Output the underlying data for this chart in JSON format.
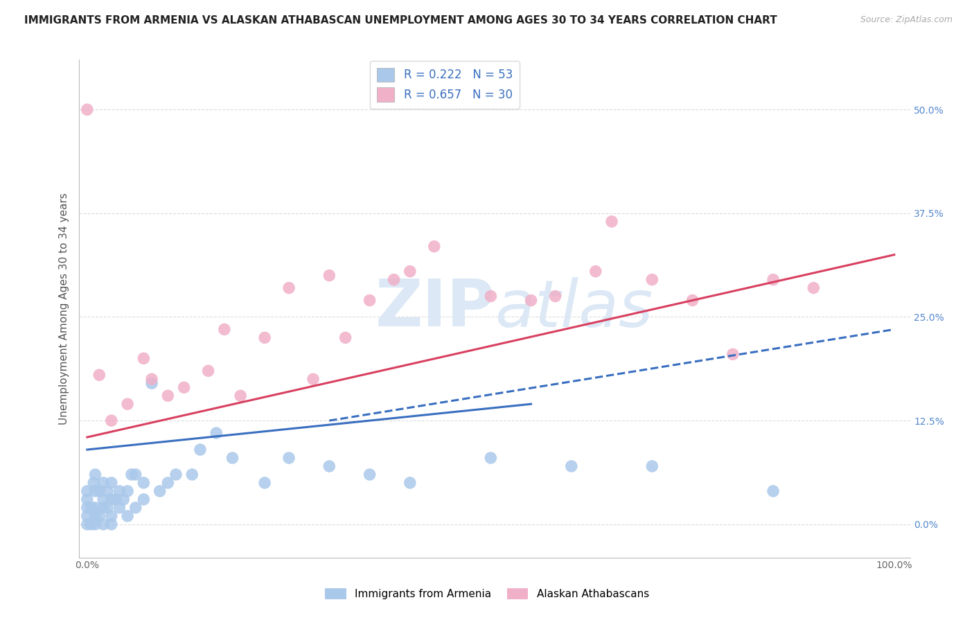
{
  "title": "IMMIGRANTS FROM ARMENIA VS ALASKAN ATHABASCAN UNEMPLOYMENT AMONG AGES 30 TO 34 YEARS CORRELATION CHART",
  "source": "Source: ZipAtlas.com",
  "ylabel": "Unemployment Among Ages 30 to 34 years",
  "xlim": [
    -0.01,
    1.02
  ],
  "ylim": [
    -0.04,
    0.56
  ],
  "yticks": [
    0.0,
    0.125,
    0.25,
    0.375,
    0.5
  ],
  "ytick_labels": [
    "0.0%",
    "12.5%",
    "25.0%",
    "37.5%",
    "50.0%"
  ],
  "xtick_positions": [
    0.0,
    1.0
  ],
  "xtick_labels": [
    "0.0%",
    "100.0%"
  ],
  "series": [
    {
      "name": "Immigrants from Armenia",
      "R": 0.222,
      "N": 53,
      "scatter_color": "#aac8ea",
      "line_color": "#3a6fc0",
      "line_style": "-",
      "scatter_x": [
        0.0,
        0.0,
        0.0,
        0.0,
        0.0,
        0.005,
        0.005,
        0.008,
        0.01,
        0.01,
        0.01,
        0.01,
        0.01,
        0.015,
        0.015,
        0.02,
        0.02,
        0.02,
        0.02,
        0.025,
        0.025,
        0.03,
        0.03,
        0.03,
        0.03,
        0.035,
        0.04,
        0.04,
        0.045,
        0.05,
        0.05,
        0.055,
        0.06,
        0.06,
        0.07,
        0.07,
        0.08,
        0.09,
        0.1,
        0.11,
        0.13,
        0.14,
        0.16,
        0.18,
        0.22,
        0.25,
        0.3,
        0.35,
        0.4,
        0.5,
        0.6,
        0.7,
        0.85
      ],
      "scatter_y": [
        0.0,
        0.01,
        0.02,
        0.03,
        0.04,
        0.0,
        0.02,
        0.05,
        0.0,
        0.01,
        0.02,
        0.04,
        0.06,
        0.01,
        0.04,
        0.0,
        0.02,
        0.03,
        0.05,
        0.02,
        0.04,
        0.0,
        0.01,
        0.03,
        0.05,
        0.03,
        0.02,
        0.04,
        0.03,
        0.01,
        0.04,
        0.06,
        0.02,
        0.06,
        0.03,
        0.05,
        0.17,
        0.04,
        0.05,
        0.06,
        0.06,
        0.09,
        0.11,
        0.08,
        0.05,
        0.08,
        0.07,
        0.06,
        0.05,
        0.08,
        0.07,
        0.07,
        0.04
      ],
      "trend_x": [
        0.0,
        0.55
      ],
      "trend_y": [
        0.09,
        0.145
      ]
    },
    {
      "name": "Alaskan Athabascans",
      "R": 0.657,
      "N": 30,
      "scatter_color": "#f0b0c8",
      "line_color": "#d84060",
      "line_style": "-",
      "scatter_x": [
        0.0,
        0.015,
        0.03,
        0.05,
        0.07,
        0.08,
        0.1,
        0.12,
        0.15,
        0.17,
        0.19,
        0.22,
        0.25,
        0.28,
        0.3,
        0.32,
        0.35,
        0.38,
        0.4,
        0.43,
        0.5,
        0.55,
        0.58,
        0.63,
        0.65,
        0.7,
        0.75,
        0.8,
        0.85,
        0.9
      ],
      "scatter_y": [
        0.5,
        0.18,
        0.125,
        0.145,
        0.2,
        0.175,
        0.155,
        0.165,
        0.185,
        0.235,
        0.155,
        0.225,
        0.285,
        0.175,
        0.3,
        0.225,
        0.27,
        0.295,
        0.305,
        0.335,
        0.275,
        0.27,
        0.275,
        0.305,
        0.365,
        0.295,
        0.27,
        0.205,
        0.295,
        0.285
      ],
      "trend_x": [
        0.0,
        1.0
      ],
      "trend_y": [
        0.105,
        0.325
      ]
    }
  ],
  "dashed_series_index": 0,
  "dashed_trend_x": [
    0.3,
    1.0
  ],
  "dashed_trend_y": [
    0.125,
    0.235
  ],
  "background_color": "#ffffff",
  "grid_color": "#cccccc",
  "title_fontsize": 11,
  "axis_label_fontsize": 11,
  "tick_fontsize": 10,
  "legend_fontsize": 12,
  "watermark_text_zip": "ZIP",
  "watermark_text_atlas": "atlas",
  "watermark_color": "#dce8f5"
}
